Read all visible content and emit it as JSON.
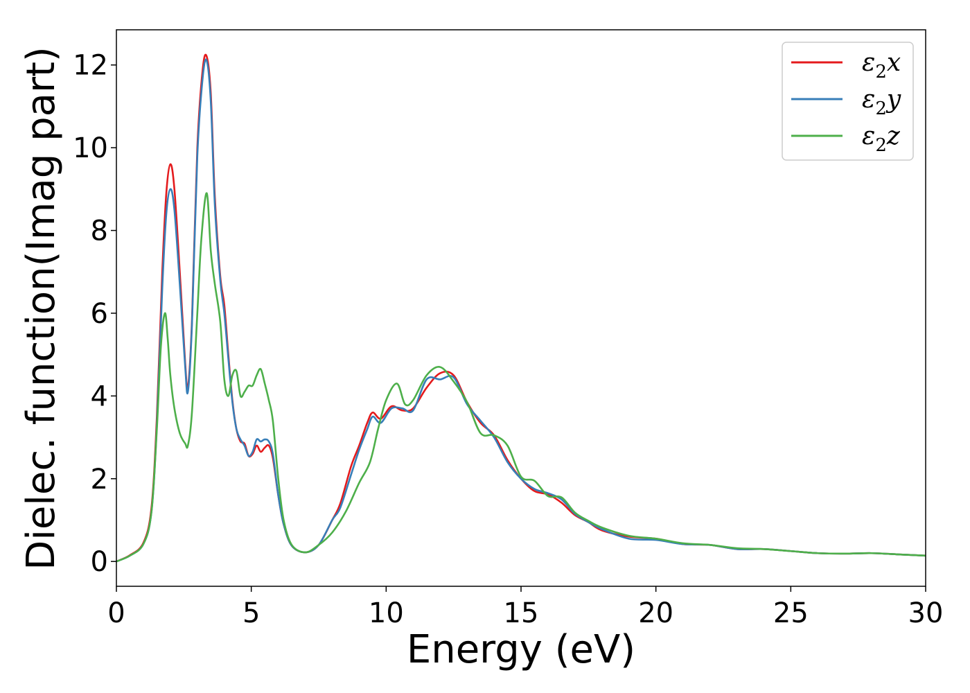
{
  "chart_data": {
    "type": "line",
    "title": "",
    "xlabel": "Energy (eV)",
    "ylabel": "Dielec. function(Imag part)",
    "xlim": [
      0,
      30
    ],
    "ylim": [
      -0.6,
      12.85
    ],
    "xticks": [
      0,
      5,
      10,
      15,
      20,
      25,
      30
    ],
    "yticks": [
      0,
      2,
      4,
      6,
      8,
      10,
      12
    ],
    "grid": false,
    "legend_position": "top-right",
    "series": [
      {
        "name": "ε₂x",
        "legend": {
          "base": "ε",
          "sub": "2",
          "var": "x"
        },
        "color": "#e41a1c",
        "x": [
          0,
          0.5,
          1.0,
          1.3,
          1.5,
          1.7,
          1.85,
          2.0,
          2.15,
          2.35,
          2.55,
          2.65,
          2.8,
          3.0,
          3.2,
          3.35,
          3.5,
          3.65,
          3.85,
          4.0,
          4.15,
          4.3,
          4.45,
          4.6,
          4.75,
          4.9,
          5.05,
          5.2,
          5.35,
          5.5,
          5.65,
          5.8,
          6.0,
          6.2,
          6.5,
          7.0,
          7.5,
          8.0,
          8.3,
          8.7,
          9.0,
          9.3,
          9.5,
          9.8,
          10.2,
          10.6,
          11.0,
          11.5,
          12.0,
          12.5,
          13.0,
          13.5,
          14.0,
          14.5,
          15.0,
          15.5,
          16.0,
          16.5,
          17.0,
          17.5,
          18.0,
          19.0,
          20.0,
          21.0,
          22.0,
          23.0,
          24.0,
          25.0,
          26.0,
          27.0,
          28.0,
          29.0,
          30.0
        ],
        "y": [
          0.0,
          0.15,
          0.45,
          1.3,
          3.5,
          7.0,
          8.9,
          9.6,
          9.0,
          7.0,
          4.8,
          4.2,
          5.8,
          10.0,
          11.9,
          12.2,
          11.3,
          8.8,
          6.9,
          6.2,
          5.0,
          3.9,
          3.2,
          2.9,
          2.85,
          2.55,
          2.6,
          2.8,
          2.65,
          2.75,
          2.8,
          2.5,
          1.6,
          0.9,
          0.38,
          0.22,
          0.4,
          1.0,
          1.4,
          2.3,
          2.8,
          3.35,
          3.6,
          3.45,
          3.75,
          3.65,
          3.7,
          4.2,
          4.55,
          4.5,
          3.85,
          3.35,
          3.05,
          2.45,
          2.0,
          1.7,
          1.62,
          1.42,
          1.12,
          0.95,
          0.75,
          0.6,
          0.55,
          0.42,
          0.4,
          0.3,
          0.3,
          0.25,
          0.2,
          0.19,
          0.2,
          0.17,
          0.14
        ]
      },
      {
        "name": "ε₂y",
        "legend": {
          "base": "ε",
          "sub": "2",
          "var": "y"
        },
        "color": "#377eb8",
        "x": [
          0,
          0.5,
          1.0,
          1.3,
          1.5,
          1.7,
          1.85,
          2.0,
          2.15,
          2.35,
          2.55,
          2.65,
          2.8,
          3.0,
          3.2,
          3.35,
          3.5,
          3.65,
          3.85,
          4.0,
          4.15,
          4.3,
          4.45,
          4.6,
          4.75,
          4.9,
          5.05,
          5.2,
          5.35,
          5.5,
          5.65,
          5.8,
          6.0,
          6.2,
          6.5,
          7.0,
          7.5,
          8.0,
          8.3,
          8.7,
          9.0,
          9.3,
          9.5,
          9.8,
          10.2,
          10.6,
          11.0,
          11.5,
          12.0,
          12.5,
          13.0,
          13.5,
          14.0,
          14.5,
          15.0,
          15.5,
          16.0,
          16.5,
          17.0,
          17.5,
          18.0,
          19.0,
          20.0,
          21.0,
          22.0,
          23.0,
          24.0,
          25.0,
          26.0,
          27.0,
          28.0,
          29.0,
          30.0
        ],
        "y": [
          0.0,
          0.14,
          0.42,
          1.2,
          3.3,
          6.6,
          8.4,
          9.0,
          8.5,
          6.7,
          4.7,
          4.1,
          5.7,
          9.8,
          11.7,
          12.1,
          11.1,
          8.6,
          6.8,
          6.0,
          4.9,
          3.85,
          3.2,
          2.95,
          2.8,
          2.55,
          2.65,
          2.95,
          2.9,
          2.95,
          2.9,
          2.6,
          1.6,
          0.9,
          0.38,
          0.22,
          0.4,
          1.0,
          1.3,
          2.1,
          2.7,
          3.2,
          3.5,
          3.35,
          3.7,
          3.7,
          3.65,
          4.4,
          4.4,
          4.45,
          3.8,
          3.4,
          3.0,
          2.4,
          2.0,
          1.75,
          1.65,
          1.5,
          1.15,
          0.95,
          0.78,
          0.55,
          0.52,
          0.42,
          0.4,
          0.3,
          0.3,
          0.25,
          0.2,
          0.19,
          0.2,
          0.17,
          0.14
        ]
      },
      {
        "name": "ε₂z",
        "legend": {
          "base": "ε",
          "sub": "2",
          "var": "z"
        },
        "color": "#4daf4a",
        "x": [
          0,
          0.5,
          1.0,
          1.3,
          1.5,
          1.65,
          1.8,
          1.9,
          2.0,
          2.15,
          2.35,
          2.55,
          2.65,
          2.8,
          3.0,
          3.15,
          3.35,
          3.5,
          3.65,
          3.85,
          4.0,
          4.15,
          4.3,
          4.45,
          4.6,
          4.75,
          4.9,
          5.05,
          5.2,
          5.35,
          5.5,
          5.65,
          5.8,
          6.0,
          6.2,
          6.5,
          7.0,
          7.5,
          8.0,
          8.5,
          9.0,
          9.4,
          9.7,
          10.0,
          10.4,
          10.7,
          11.0,
          11.5,
          12.0,
          12.5,
          13.0,
          13.5,
          14.0,
          14.5,
          15.0,
          15.5,
          16.0,
          16.5,
          17.0,
          17.5,
          18.0,
          19.0,
          20.0,
          21.0,
          22.0,
          23.0,
          24.0,
          25.0,
          26.0,
          27.0,
          28.0,
          29.0,
          30.0
        ],
        "y": [
          0.0,
          0.14,
          0.42,
          1.2,
          3.2,
          5.2,
          6.0,
          5.4,
          4.5,
          3.7,
          3.1,
          2.85,
          2.8,
          3.6,
          6.0,
          7.8,
          8.9,
          7.5,
          6.7,
          5.8,
          4.4,
          4.0,
          4.5,
          4.6,
          4.0,
          4.1,
          4.25,
          4.25,
          4.5,
          4.65,
          4.3,
          3.9,
          3.4,
          2.0,
          1.0,
          0.4,
          0.22,
          0.4,
          0.7,
          1.2,
          1.9,
          2.4,
          3.2,
          3.9,
          4.3,
          3.8,
          3.9,
          4.5,
          4.7,
          4.35,
          3.85,
          3.1,
          3.05,
          2.8,
          2.05,
          1.95,
          1.58,
          1.55,
          1.18,
          0.98,
          0.82,
          0.62,
          0.55,
          0.44,
          0.4,
          0.32,
          0.3,
          0.25,
          0.2,
          0.19,
          0.2,
          0.17,
          0.14
        ]
      }
    ]
  }
}
